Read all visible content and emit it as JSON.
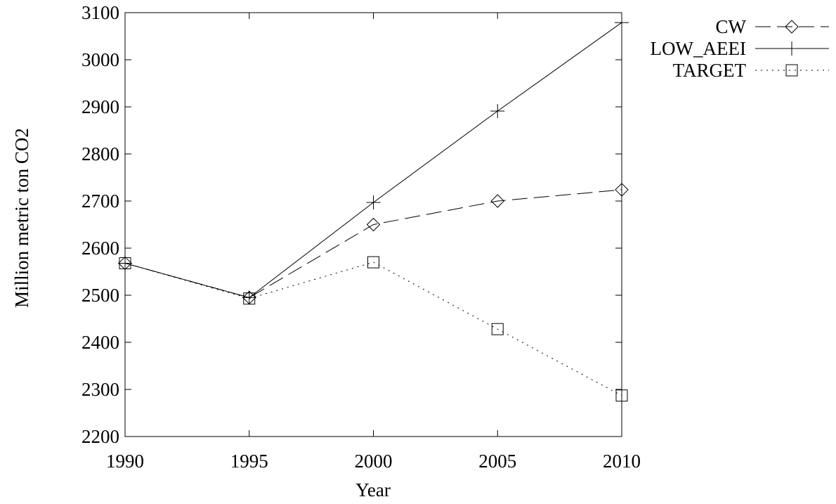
{
  "chart_data": {
    "type": "line",
    "xlabel": "Year",
    "ylabel": "Million metric ton CO2",
    "xlim": [
      1990,
      2010
    ],
    "ylim": [
      2200,
      3100
    ],
    "x_ticks": [
      1990,
      1995,
      2000,
      2005,
      2010
    ],
    "y_ticks": [
      2200,
      2300,
      2400,
      2500,
      2600,
      2700,
      2800,
      2900,
      3000,
      3100
    ],
    "grid": false,
    "legend_position": "top-right outside plot",
    "x": [
      1990,
      1995,
      2000,
      2005,
      2010
    ],
    "series": [
      {
        "name": "CW",
        "values": [
          2568,
          2495,
          2650,
          2700,
          2724
        ],
        "style": "dashed",
        "marker": "diamond",
        "color": "#000000"
      },
      {
        "name": "LOW_AEEI",
        "values": [
          2568,
          2495,
          2697,
          2891,
          3079
        ],
        "style": "solid",
        "marker": "plus",
        "color": "#000000"
      },
      {
        "name": "TARGET",
        "values": [
          2568,
          2493,
          2570,
          2428,
          2287
        ],
        "style": "dotted",
        "marker": "square",
        "color": "#000000"
      }
    ]
  }
}
